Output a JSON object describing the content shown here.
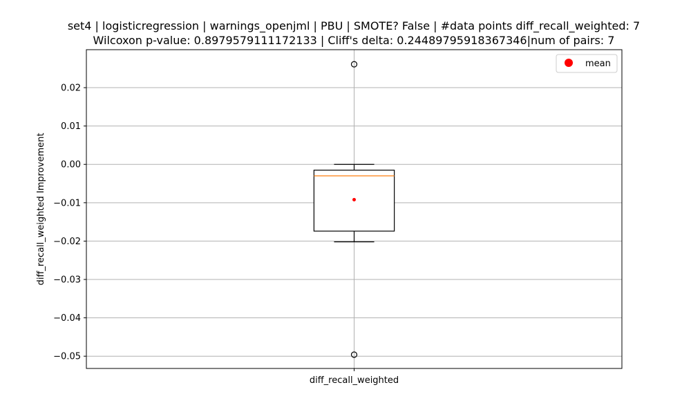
{
  "chart_data": {
    "type": "box",
    "title_lines": [
      "set4 | logisticregression | warnings_openjml | PBU | SMOTE? False | #data points diff_recall_weighted: 7",
      "Wilcoxon p-value: 0.8979579111172133 | Cliff's delta: 0.24489795918367346|num of pairs: 7"
    ],
    "xlabel": "",
    "ylabel": "diff_recall_weighted Improvement",
    "ylim": [
      -0.0532,
      0.0299
    ],
    "y_ticks": [
      0.02,
      0.01,
      0.0,
      -0.01,
      -0.02,
      -0.03,
      -0.04,
      -0.05
    ],
    "y_tick_labels": [
      "0.02",
      "0.01",
      "0.00",
      "−0.01",
      "−0.02",
      "−0.03",
      "−0.04",
      "−0.05"
    ],
    "categories": [
      "diff_recall_weighted"
    ],
    "grid": true,
    "legend": {
      "position": "top-right",
      "entries": [
        {
          "label": "mean",
          "color": "#ff0000",
          "marker": "circle"
        }
      ]
    },
    "boxes": [
      {
        "category": "diff_recall_weighted",
        "whisker_low": -0.0202,
        "q1": -0.0174,
        "median": -0.003,
        "q3": -0.0015,
        "whisker_high": 0.0,
        "mean": -0.0092,
        "outliers": [
          0.0261,
          -0.0496
        ]
      }
    ],
    "colors": {
      "box": "#000000",
      "median": "#ff7f0e",
      "mean": "#ff0000",
      "grid": "#b0b0b0",
      "outlier": "#000000"
    }
  }
}
